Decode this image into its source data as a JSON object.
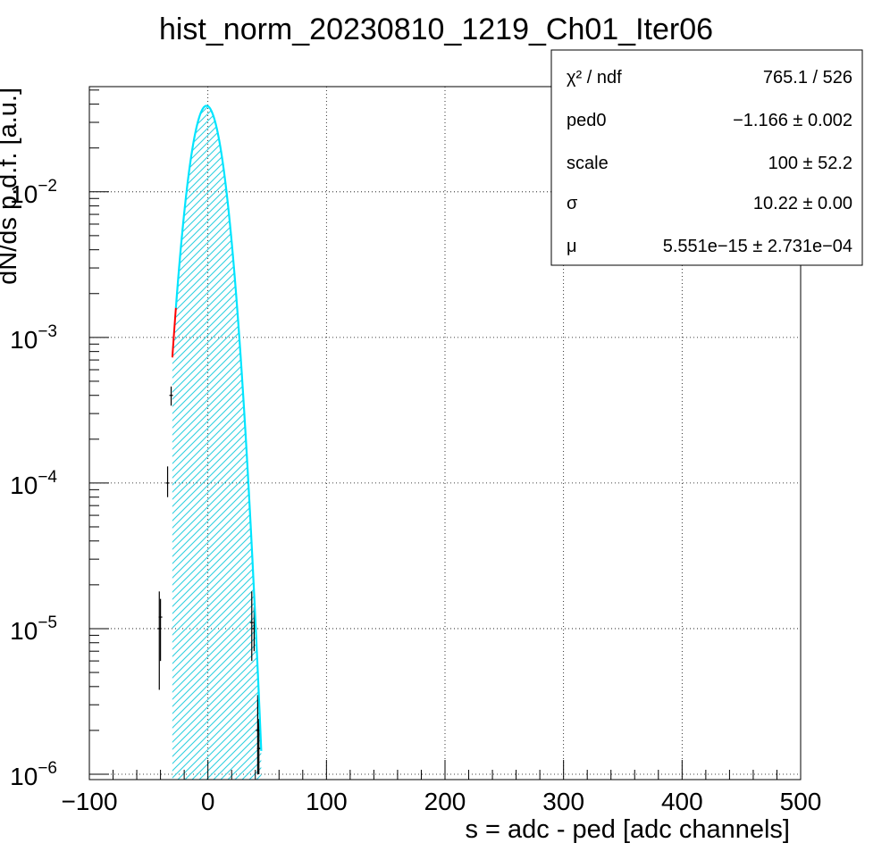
{
  "chart_data": {
    "type": "histogram-fit",
    "title": "hist_norm_20230810_1219_Ch01_Iter06",
    "xlabel": "s = adc - ped [adc channels]",
    "ylabel": "dN/ds p.d.f. [a.u.]",
    "xlim": [
      -100,
      500
    ],
    "ylim": [
      1e-06,
      0.07
    ],
    "log_y": true,
    "grid": true,
    "x_ticks": [
      {
        "value": -100,
        "label": "−100"
      },
      {
        "value": 0,
        "label": "0"
      },
      {
        "value": 100,
        "label": "100"
      },
      {
        "value": 200,
        "label": "200"
      },
      {
        "value": 300,
        "label": "300"
      },
      {
        "value": 400,
        "label": "400"
      },
      {
        "value": 500,
        "label": "500"
      }
    ],
    "y_ticks": [
      {
        "value": 1e-06,
        "mantissa": "10",
        "exponent": "−6"
      },
      {
        "value": 1e-05,
        "mantissa": "10",
        "exponent": "−5"
      },
      {
        "value": 0.0001,
        "mantissa": "10",
        "exponent": "−4"
      },
      {
        "value": 0.001,
        "mantissa": "10",
        "exponent": "−3"
      },
      {
        "value": 0.01,
        "mantissa": "10",
        "exponent": "−2"
      }
    ],
    "fit": {
      "model": "gaussian",
      "ped0": -1.166,
      "sigma": 10.22,
      "fill_range": [
        -30,
        45
      ],
      "fill_color": "#30d0e0",
      "curve_color": "#00e5ff",
      "red_segment": [
        -30,
        -27
      ],
      "red_color": "#ff0000"
    },
    "data_points": [
      {
        "x": -41,
        "y": 1e-05,
        "lo": 3.8e-06,
        "hi": 1.8e-05
      },
      {
        "x": -40,
        "y": 1.2e-05,
        "lo": 6e-06,
        "hi": 1.6e-05
      },
      {
        "x": -34,
        "y": 0.0001,
        "lo": 8e-05,
        "hi": 0.00013
      },
      {
        "x": -31,
        "y": 0.0004,
        "lo": 0.00034,
        "hi": 0.00046
      },
      {
        "x": 37,
        "y": 1.1e-05,
        "lo": 6e-06,
        "hi": 1.8e-05
      },
      {
        "x": 39,
        "y": 1e-05,
        "lo": 7e-06,
        "hi": 1.4e-05
      },
      {
        "x": 42,
        "y": 2e-06,
        "lo": 1e-06,
        "hi": 3.5e-06
      },
      {
        "x": 43,
        "y": 1.5e-06,
        "lo": 1e-06,
        "hi": 2.4e-06
      }
    ],
    "stats": [
      {
        "name": "χ² / ndf",
        "value": "765.1 / 526"
      },
      {
        "name": "ped0",
        "value": "−1.166 ± 0.002"
      },
      {
        "name": "scale",
        "value": "100 ± 52.2"
      },
      {
        "name": "σ",
        "value": "10.22 ± 0.00"
      },
      {
        "name": "μ",
        "value": "5.551e−15 ± 2.731e−04"
      }
    ]
  }
}
